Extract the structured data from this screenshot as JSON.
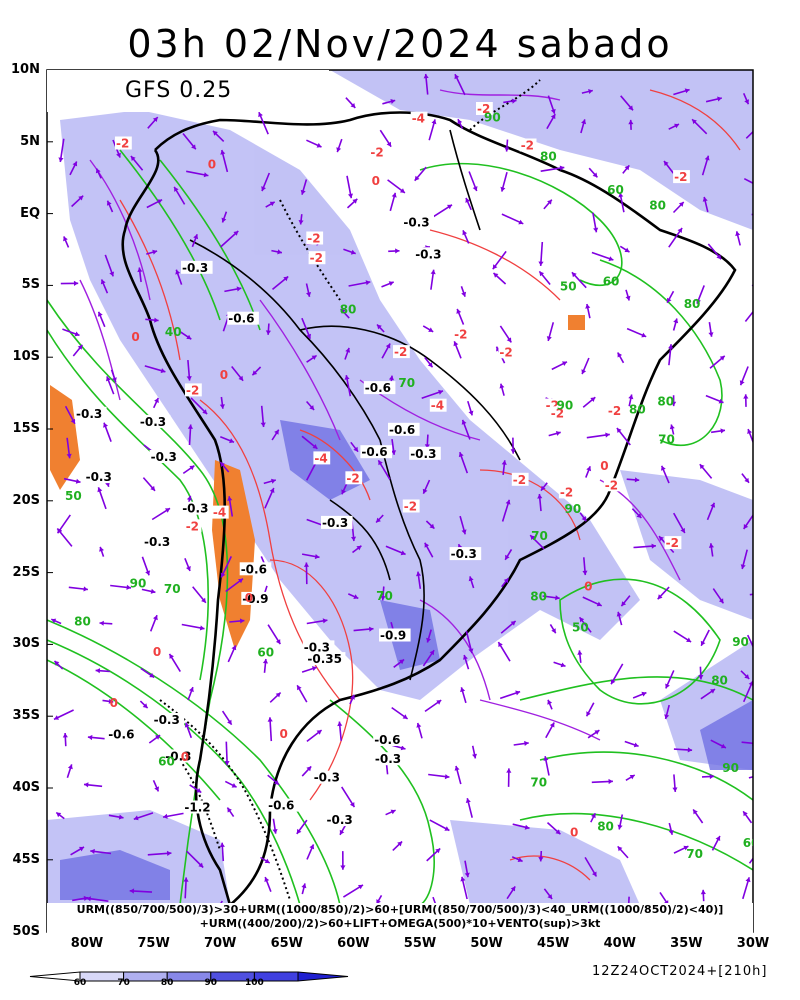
{
  "title": "03h 02/Nov/2024 sabado",
  "model": "GFS 0.25",
  "lat_labels": [
    "10N",
    "5N",
    "EQ",
    "5S",
    "10S",
    "15S",
    "20S",
    "25S",
    "30S",
    "35S",
    "40S",
    "45S",
    "50S"
  ],
  "lon_labels": [
    "80W",
    "75W",
    "70W",
    "65W",
    "60W",
    "55W",
    "50W",
    "45W",
    "40W",
    "35W",
    "30W"
  ],
  "footer_line1": "URM((850/700/500)/3)>30+URM((1000/850)/2)>60+[URM((850/700/500)/3)<40_URM((1000/850)/2)<40)]",
  "footer_line2": "+URM((400/200)/2)>60+LIFT+OMEGA(500)*10+VENTO(sup)>3kt",
  "legend_ticks": [
    "60",
    "70",
    "80",
    "90",
    "100"
  ],
  "legend_colors": [
    "#ffffff",
    "#d8d8f8",
    "#b0b0f0",
    "#8888e8",
    "#5050e0",
    "#4040e0",
    "#2020d0"
  ],
  "run_info": "12Z24OCT2024+[210h]",
  "colors": {
    "humidity_shade": "#a8a8f0",
    "omega_contour": "#ff4040",
    "urm_contour": "#20c020",
    "urm_upper_contour": "#a020e0",
    "lift_fill": "#ff8020",
    "wind_vector": "#8000e0",
    "coastline": "#000000"
  },
  "contour_labels": {
    "omega": [
      "-0.3",
      "-0.3",
      "-0.3",
      "-0.3",
      "-0.6",
      "-0.3",
      "-0.3",
      "-0.3",
      "-0.9",
      "-0.3",
      "-0.6",
      "-0.3",
      "-0.6",
      "-0.3",
      "-0.6",
      "-0.3",
      "-0.3",
      "-0.3",
      "-0.9",
      "-0.3",
      "-0.6",
      "-0.35",
      "-1.2",
      "-0.3",
      "-0.3",
      "-0.6",
      "-0.3",
      "-0.3",
      "-0.6",
      "-0.6"
    ],
    "lift": [
      "-2",
      "-2",
      "-2",
      "-4",
      "-2",
      "-2",
      "-2",
      "-2",
      "-2",
      "-4",
      "-2",
      "-2",
      "-2",
      "-4",
      "-2",
      "-2",
      "-2",
      "-2",
      "-2",
      "-2",
      "-2",
      "-4",
      "-2",
      "-2",
      "-2"
    ],
    "urm": [
      "80",
      "90",
      "80",
      "80",
      "70",
      "60",
      "80",
      "70",
      "90",
      "80",
      "90",
      "70",
      "80",
      "50",
      "60",
      "70",
      "80",
      "90",
      "60",
      "80",
      "70",
      "50",
      "90",
      "80",
      "70",
      "60",
      "40",
      "50",
      "60",
      "70",
      "80",
      "90"
    ],
    "urm_zero": [
      "0",
      "0",
      "0",
      "0",
      "0",
      "0",
      "0",
      "0",
      "0",
      "0",
      "0",
      "0"
    ]
  }
}
